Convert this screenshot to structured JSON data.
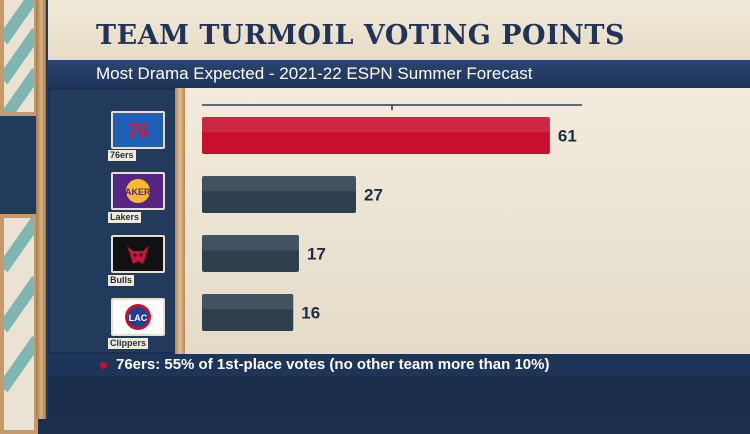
{
  "title": "TEAM TURMOIL VOTING POINTS",
  "subtitle": "Most Drama Expected  - 2021-22 ESPN Summer Forecast",
  "footnote": "76ers: 55% of 1st-place votes (no other team more than 10%)",
  "colors": {
    "highlight_bar": "#c8102e",
    "default_bar": "#2e3f4d",
    "bullet": "#c8102e"
  },
  "teams": [
    {
      "label": "76ers",
      "logo_text": "76",
      "logo_icon": "76ers-logo-icon"
    },
    {
      "label": "Lakers",
      "logo_text": "LAKERS",
      "logo_icon": "lakers-logo-icon"
    },
    {
      "label": "Bulls",
      "logo_text": "",
      "logo_icon": "bulls-logo-icon"
    },
    {
      "label": "Clippers",
      "logo_text": "LAC",
      "logo_icon": "clippers-logo-icon"
    }
  ],
  "chart_data": {
    "type": "bar",
    "orientation": "horizontal",
    "categories": [
      "76ers",
      "Lakers",
      "Bulls",
      "Clippers"
    ],
    "values": [
      61,
      27,
      17,
      16
    ],
    "highlight": "76ers",
    "xlim": [
      0,
      64
    ],
    "title": "TEAM TURMOIL VOTING POINTS",
    "subtitle": "Most Drama Expected  - 2021-22 ESPN Summer Forecast"
  }
}
